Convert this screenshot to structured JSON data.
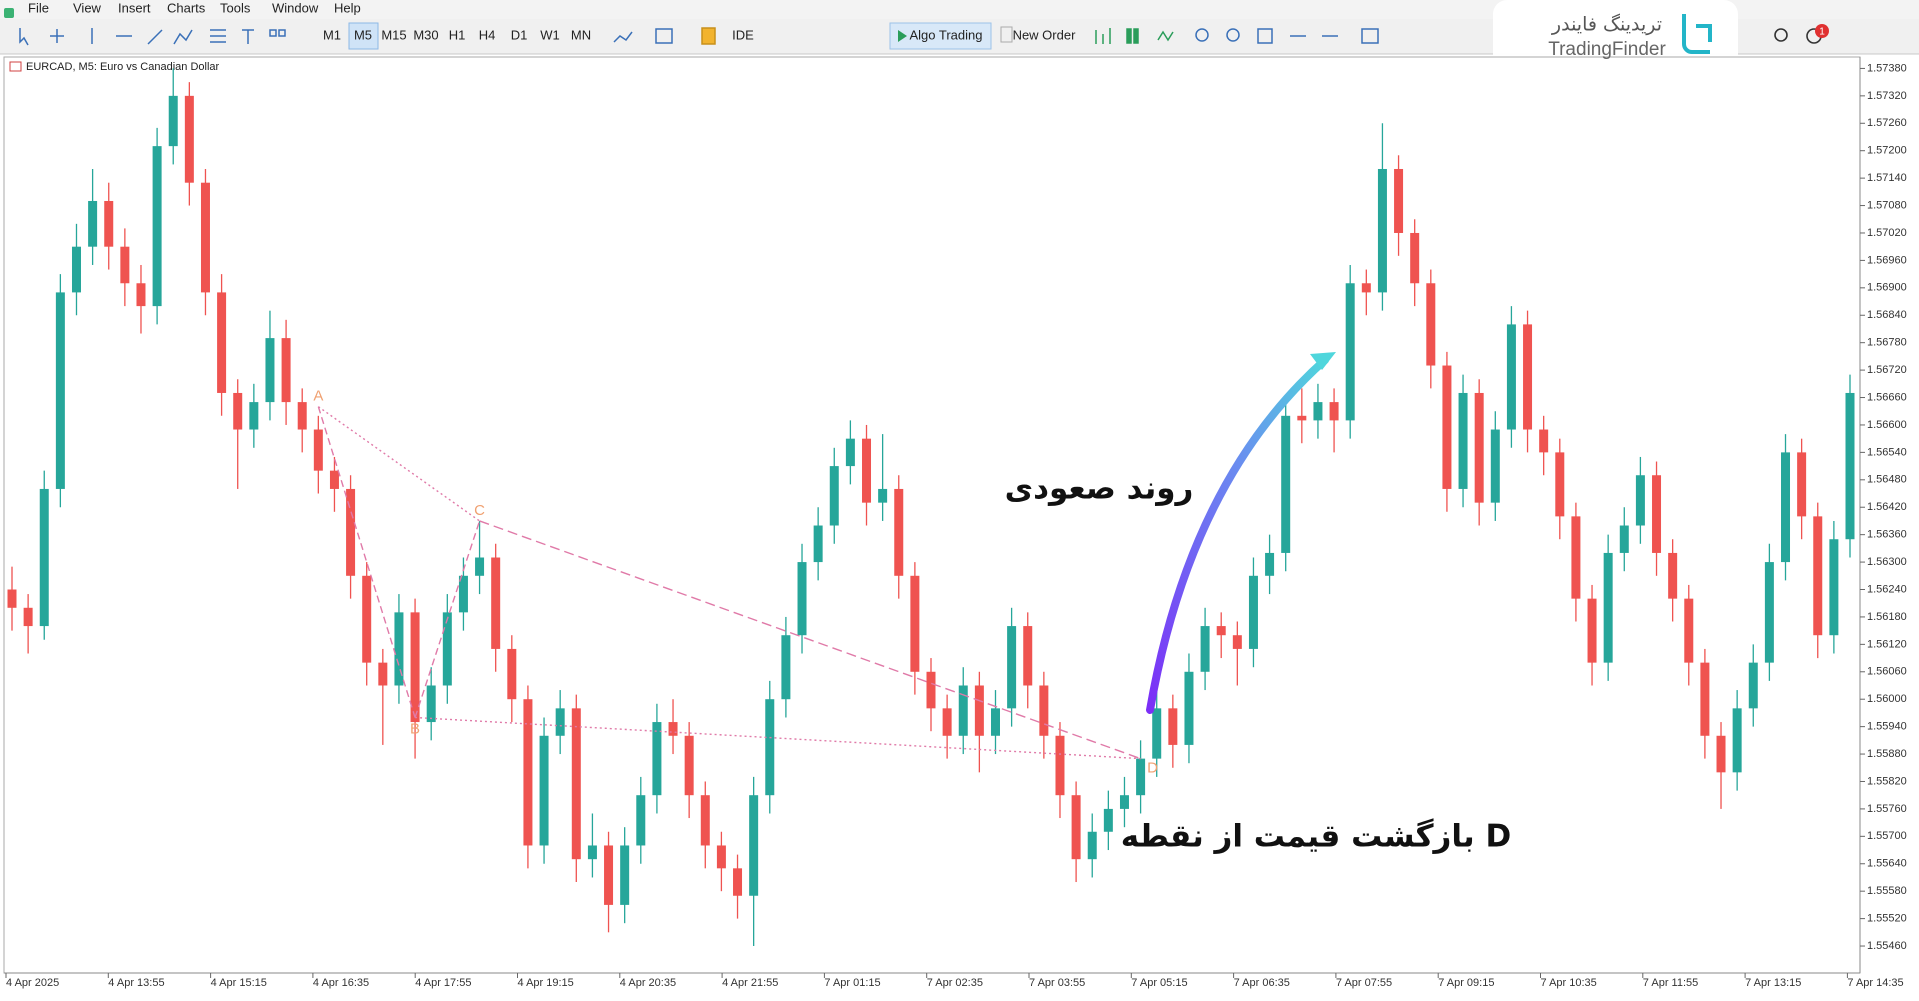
{
  "window": {
    "menu": [
      "File",
      "View",
      "Insert",
      "Charts",
      "Tools",
      "Window",
      "Help"
    ],
    "timeframes": [
      "M1",
      "M5",
      "M15",
      "M30",
      "H1",
      "H4",
      "D1",
      "W1",
      "MN"
    ],
    "toolbar_buttons": [
      "IDE",
      "Algo Trading",
      "New Order"
    ],
    "logo": {
      "fa": "تریدینگ فایندر",
      "en": "TradingFinder"
    },
    "notification_count": 1
  },
  "chart_data": {
    "type": "candlestick",
    "title": "EURCAD, M5:  Euro vs Canadian Dollar",
    "up_color": "#26a69a",
    "down_color": "#ef5350",
    "grid": false,
    "ylim": [
      1.55401,
      1.57405
    ],
    "yticks": [
      {
        "value": 1.5546,
        "label": "1.55460"
      },
      {
        "value": 1.5552,
        "label": "1.55520"
      },
      {
        "value": 1.5558,
        "label": "1.55580"
      },
      {
        "value": 1.5564,
        "label": "1.55640"
      },
      {
        "value": 1.557,
        "label": "1.55700"
      },
      {
        "value": 1.5576,
        "label": "1.55760"
      },
      {
        "value": 1.5582,
        "label": "1.55820"
      },
      {
        "value": 1.5588,
        "label": "1.55880"
      },
      {
        "value": 1.5594,
        "label": "1.55940"
      },
      {
        "value": 1.56,
        "label": "1.56000"
      },
      {
        "value": 1.5606,
        "label": "1.56060"
      },
      {
        "value": 1.5612,
        "label": "1.56120"
      },
      {
        "value": 1.5618,
        "label": "1.56180"
      },
      {
        "value": 1.5624,
        "label": "1.56240"
      },
      {
        "value": 1.563,
        "label": "1.56300"
      },
      {
        "value": 1.5636,
        "label": "1.56360"
      },
      {
        "value": 1.5642,
        "label": "1.56420"
      },
      {
        "value": 1.5648,
        "label": "1.56480"
      },
      {
        "value": 1.5654,
        "label": "1.56540"
      },
      {
        "value": 1.566,
        "label": "1.56600"
      },
      {
        "value": 1.5666,
        "label": "1.56660"
      },
      {
        "value": 1.5672,
        "label": "1.56720"
      },
      {
        "value": 1.5678,
        "label": "1.56780"
      },
      {
        "value": 1.5684,
        "label": "1.56840"
      },
      {
        "value": 1.569,
        "label": "1.56900"
      },
      {
        "value": 1.5696,
        "label": "1.56960"
      },
      {
        "value": 1.5702,
        "label": "1.57020"
      },
      {
        "value": 1.5708,
        "label": "1.57080"
      },
      {
        "value": 1.5714,
        "label": "1.57140"
      },
      {
        "value": 1.572,
        "label": "1.57200"
      },
      {
        "value": 1.5726,
        "label": "1.57260"
      },
      {
        "value": 1.5732,
        "label": "1.57320"
      },
      {
        "value": 1.5738,
        "label": "1.57380"
      }
    ],
    "xtick_labels": [
      "4 Apr 2025",
      "4 Apr 13:55",
      "4 Apr 15:15",
      "4 Apr 16:35",
      "4 Apr 17:55",
      "4 Apr 19:15",
      "4 Apr 20:35",
      "4 Apr 21:55",
      "7 Apr 01:15",
      "7 Apr 02:35",
      "7 Apr 03:55",
      "7 Apr 05:15",
      "7 Apr 06:35",
      "7 Apr 07:55",
      "7 Apr 09:15",
      "7 Apr 10:35",
      "7 Apr 11:55",
      "7 Apr 13:15",
      "7 Apr 14:35"
    ],
    "candles": [
      [
        1.5624,
        1.5629,
        1.5615,
        1.562
      ],
      [
        1.562,
        1.5623,
        1.561,
        1.5616
      ],
      [
        1.5616,
        1.565,
        1.5613,
        1.5646
      ],
      [
        1.5646,
        1.5693,
        1.5642,
        1.5689
      ],
      [
        1.5689,
        1.5704,
        1.5684,
        1.5699
      ],
      [
        1.5699,
        1.5716,
        1.5695,
        1.5709
      ],
      [
        1.5709,
        1.5713,
        1.5694,
        1.5699
      ],
      [
        1.5699,
        1.5703,
        1.5686,
        1.5691
      ],
      [
        1.5691,
        1.5695,
        1.568,
        1.5686
      ],
      [
        1.5686,
        1.5725,
        1.5682,
        1.5721
      ],
      [
        1.5721,
        1.5738,
        1.5717,
        1.5732
      ],
      [
        1.5732,
        1.5735,
        1.5708,
        1.5713
      ],
      [
        1.5713,
        1.5716,
        1.5684,
        1.5689
      ],
      [
        1.5689,
        1.5693,
        1.5662,
        1.5667
      ],
      [
        1.5667,
        1.567,
        1.5646,
        1.5659
      ],
      [
        1.5659,
        1.5669,
        1.5655,
        1.5665
      ],
      [
        1.5665,
        1.5685,
        1.5661,
        1.5679
      ],
      [
        1.5679,
        1.5683,
        1.566,
        1.5665
      ],
      [
        1.5665,
        1.5668,
        1.5654,
        1.5659
      ],
      [
        1.5659,
        1.5662,
        1.5645,
        1.565
      ],
      [
        1.565,
        1.5653,
        1.5641,
        1.5646
      ],
      [
        1.5646,
        1.5649,
        1.5622,
        1.5627
      ],
      [
        1.5627,
        1.563,
        1.5603,
        1.5608
      ],
      [
        1.5608,
        1.5611,
        1.559,
        1.5603
      ],
      [
        1.5603,
        1.5623,
        1.5599,
        1.5619
      ],
      [
        1.5619,
        1.5622,
        1.5587,
        1.5595
      ],
      [
        1.5595,
        1.5607,
        1.5591,
        1.5603
      ],
      [
        1.5603,
        1.5623,
        1.5599,
        1.5619
      ],
      [
        1.5619,
        1.5631,
        1.5615,
        1.5627
      ],
      [
        1.5627,
        1.5639,
        1.5623,
        1.5631
      ],
      [
        1.5631,
        1.5634,
        1.5606,
        1.5611
      ],
      [
        1.5611,
        1.5614,
        1.5595,
        1.56
      ],
      [
        1.56,
        1.5603,
        1.5563,
        1.5568
      ],
      [
        1.5568,
        1.5596,
        1.5564,
        1.5592
      ],
      [
        1.5592,
        1.5602,
        1.5588,
        1.5598
      ],
      [
        1.5598,
        1.5601,
        1.556,
        1.5565
      ],
      [
        1.5565,
        1.5575,
        1.5561,
        1.5568
      ],
      [
        1.5568,
        1.5571,
        1.5549,
        1.5555
      ],
      [
        1.5555,
        1.5572,
        1.5551,
        1.5568
      ],
      [
        1.5568,
        1.5583,
        1.5564,
        1.5579
      ],
      [
        1.5579,
        1.5599,
        1.5575,
        1.5595
      ],
      [
        1.5595,
        1.56,
        1.5588,
        1.5592
      ],
      [
        1.5592,
        1.5595,
        1.5574,
        1.5579
      ],
      [
        1.5579,
        1.5582,
        1.5563,
        1.5568
      ],
      [
        1.5568,
        1.5571,
        1.5558,
        1.5563
      ],
      [
        1.5563,
        1.5566,
        1.5552,
        1.5557
      ],
      [
        1.5557,
        1.5583,
        1.5546,
        1.5579
      ],
      [
        1.5579,
        1.5604,
        1.5575,
        1.56
      ],
      [
        1.56,
        1.5618,
        1.5596,
        1.5614
      ],
      [
        1.5614,
        1.5634,
        1.561,
        1.563
      ],
      [
        1.563,
        1.5642,
        1.5626,
        1.5638
      ],
      [
        1.5638,
        1.5655,
        1.5634,
        1.5651
      ],
      [
        1.5651,
        1.5661,
        1.5647,
        1.5657
      ],
      [
        1.5657,
        1.566,
        1.5638,
        1.5643
      ],
      [
        1.5643,
        1.5658,
        1.5639,
        1.5646
      ],
      [
        1.5646,
        1.5649,
        1.5622,
        1.5627
      ],
      [
        1.5627,
        1.563,
        1.5601,
        1.5606
      ],
      [
        1.5606,
        1.5609,
        1.5593,
        1.5598
      ],
      [
        1.5598,
        1.5601,
        1.5587,
        1.5592
      ],
      [
        1.5592,
        1.5607,
        1.5588,
        1.5603
      ],
      [
        1.5603,
        1.5606,
        1.5584,
        1.5592
      ],
      [
        1.5592,
        1.5602,
        1.5588,
        1.5598
      ],
      [
        1.5598,
        1.562,
        1.5594,
        1.5616
      ],
      [
        1.5616,
        1.5619,
        1.5598,
        1.5603
      ],
      [
        1.5603,
        1.5606,
        1.5587,
        1.5592
      ],
      [
        1.5592,
        1.5595,
        1.5574,
        1.5579
      ],
      [
        1.5579,
        1.5582,
        1.556,
        1.5565
      ],
      [
        1.5565,
        1.5575,
        1.5561,
        1.5571
      ],
      [
        1.5571,
        1.558,
        1.5567,
        1.5576
      ],
      [
        1.5576,
        1.5583,
        1.5572,
        1.5579
      ],
      [
        1.5579,
        1.5591,
        1.5575,
        1.5587
      ],
      [
        1.5587,
        1.5602,
        1.5583,
        1.5598
      ],
      [
        1.5598,
        1.5601,
        1.5585,
        1.559
      ],
      [
        1.559,
        1.561,
        1.5586,
        1.5606
      ],
      [
        1.5606,
        1.562,
        1.5602,
        1.5616
      ],
      [
        1.5616,
        1.5619,
        1.5609,
        1.5614
      ],
      [
        1.5614,
        1.5617,
        1.5603,
        1.5611
      ],
      [
        1.5611,
        1.5631,
        1.5607,
        1.5627
      ],
      [
        1.5627,
        1.5636,
        1.5623,
        1.5632
      ],
      [
        1.5632,
        1.5666,
        1.5628,
        1.5662
      ],
      [
        1.5662,
        1.5668,
        1.5656,
        1.5661
      ],
      [
        1.5661,
        1.5669,
        1.5657,
        1.5665
      ],
      [
        1.5665,
        1.5668,
        1.5654,
        1.5661
      ],
      [
        1.5661,
        1.5695,
        1.5657,
        1.5691
      ],
      [
        1.5691,
        1.5694,
        1.5684,
        1.5689
      ],
      [
        1.5689,
        1.5726,
        1.5685,
        1.5716
      ],
      [
        1.5716,
        1.5719,
        1.5697,
        1.5702
      ],
      [
        1.5702,
        1.5705,
        1.5686,
        1.5691
      ],
      [
        1.5691,
        1.5694,
        1.5668,
        1.5673
      ],
      [
        1.5673,
        1.5676,
        1.5641,
        1.5646
      ],
      [
        1.5646,
        1.5671,
        1.5642,
        1.5667
      ],
      [
        1.5667,
        1.567,
        1.5638,
        1.5643
      ],
      [
        1.5643,
        1.5663,
        1.5639,
        1.5659
      ],
      [
        1.5659,
        1.5686,
        1.5655,
        1.5682
      ],
      [
        1.5682,
        1.5685,
        1.5654,
        1.5659
      ],
      [
        1.5659,
        1.5662,
        1.5649,
        1.5654
      ],
      [
        1.5654,
        1.5657,
        1.5635,
        1.564
      ],
      [
        1.564,
        1.5643,
        1.5617,
        1.5622
      ],
      [
        1.5622,
        1.5625,
        1.5603,
        1.5608
      ],
      [
        1.5608,
        1.5636,
        1.5604,
        1.5632
      ],
      [
        1.5632,
        1.5642,
        1.5628,
        1.5638
      ],
      [
        1.5638,
        1.5653,
        1.5634,
        1.5649
      ],
      [
        1.5649,
        1.5652,
        1.5627,
        1.5632
      ],
      [
        1.5632,
        1.5635,
        1.5617,
        1.5622
      ],
      [
        1.5622,
        1.5625,
        1.5603,
        1.5608
      ],
      [
        1.5608,
        1.5611,
        1.5587,
        1.5592
      ],
      [
        1.5592,
        1.5595,
        1.5576,
        1.5584
      ],
      [
        1.5584,
        1.5602,
        1.558,
        1.5598
      ],
      [
        1.5598,
        1.5612,
        1.5594,
        1.5608
      ],
      [
        1.5608,
        1.5634,
        1.5604,
        1.563
      ],
      [
        1.563,
        1.5658,
        1.5626,
        1.5654
      ],
      [
        1.5654,
        1.5657,
        1.5635,
        1.564
      ],
      [
        1.564,
        1.5643,
        1.5609,
        1.5614
      ],
      [
        1.5614,
        1.5639,
        1.561,
        1.5635
      ],
      [
        1.5635,
        1.5671,
        1.5631,
        1.5667
      ]
    ],
    "pattern": [
      {
        "label": "A",
        "value": 1.5664
      },
      {
        "label": "B",
        "value": 1.5596
      },
      {
        "label": "C",
        "value": 1.5639
      },
      {
        "label": "D",
        "value": 1.5587
      }
    ],
    "pattern_color": "#e07aa8",
    "point_label_color": "#f0a070",
    "annotations": {
      "trend": "روند صعودی",
      "reversal": "بازگشت قیمت از نقطه D"
    }
  }
}
